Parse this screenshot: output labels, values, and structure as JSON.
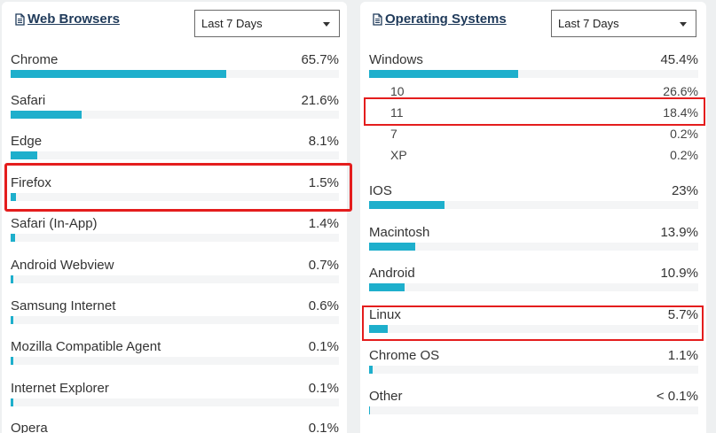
{
  "browsers": {
    "title": "Web Browsers",
    "range": "Last 7 Days",
    "items": [
      {
        "label": "Chrome",
        "value": "65.7%",
        "fraction": 0.657
      },
      {
        "label": "Safari",
        "value": "21.6%",
        "fraction": 0.216
      },
      {
        "label": "Edge",
        "value": "8.1%",
        "fraction": 0.081
      },
      {
        "label": "Firefox",
        "value": "1.5%",
        "fraction": 0.015
      },
      {
        "label": "Safari (In-App)",
        "value": "1.4%",
        "fraction": 0.014
      },
      {
        "label": "Android Webview",
        "value": "0.7%",
        "fraction": 0.007
      },
      {
        "label": "Samsung Internet",
        "value": "0.6%",
        "fraction": 0.006
      },
      {
        "label": "Mozilla Compatible Agent",
        "value": "0.1%",
        "fraction": 0.001
      },
      {
        "label": "Internet Explorer",
        "value": "0.1%",
        "fraction": 0.001
      },
      {
        "label": "Opera",
        "value": "0.1%",
        "fraction": 0.001
      }
    ]
  },
  "os": {
    "title": "Operating Systems",
    "range": "Last 7 Days",
    "windows": {
      "label": "Windows",
      "value": "45.4%",
      "fraction": 0.454,
      "versions": [
        {
          "label": "10",
          "value": "26.6%"
        },
        {
          "label": "11",
          "value": "18.4%"
        },
        {
          "label": "7",
          "value": "0.2%"
        },
        {
          "label": "XP",
          "value": "0.2%"
        }
      ]
    },
    "items": [
      {
        "label": "IOS",
        "value": "23%",
        "fraction": 0.23
      },
      {
        "label": "Macintosh",
        "value": "13.9%",
        "fraction": 0.139
      },
      {
        "label": "Android",
        "value": "10.9%",
        "fraction": 0.109
      },
      {
        "label": "Linux",
        "value": "5.7%",
        "fraction": 0.057
      },
      {
        "label": "Chrome OS",
        "value": "1.1%",
        "fraction": 0.011
      },
      {
        "label": "Other",
        "value": "< 0.1%",
        "fraction": 0.0
      }
    ]
  },
  "colors": {
    "bar": "#1eafcc",
    "track": "#f4f5f6",
    "highlight": "#e41d1d",
    "title": "#1f3a5a"
  }
}
